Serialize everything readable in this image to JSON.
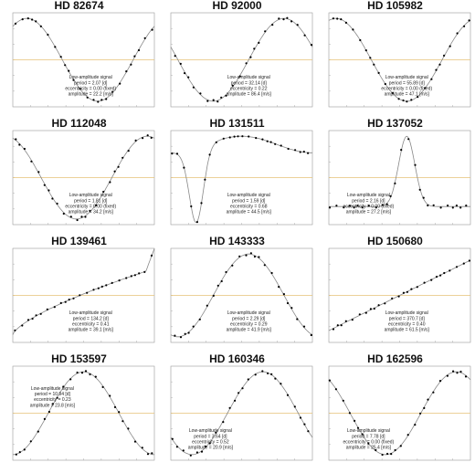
{
  "chart_data": [
    {
      "type": "line",
      "title": "HD 82674",
      "kind": "sin",
      "phase": 0.15,
      "period_d": 207,
      "xmax": 650,
      "orient": "br",
      "annotation": [
        "Low-amplitude signal",
        "period = 2.07 [d]",
        "eccentricity = 0.00 (fixed)",
        "amplitude = 22.2 [m/s]"
      ]
    },
    {
      "type": "line",
      "title": "HD 92000",
      "kind": "sin",
      "phase": 0.45,
      "period_d": 321,
      "xmax": 1400,
      "orient": "br",
      "annotation": [
        "Low-amplitude signal",
        "period = 32.14 [d]",
        "eccentricity = 0.22",
        "amplitude = 86.4 [m/s]"
      ]
    },
    {
      "type": "line",
      "title": "HD 105982",
      "kind": "sin",
      "phase": 0.2,
      "period_d": 559,
      "xmax": 1100,
      "orient": "br",
      "annotation": [
        "Low-amplitude signal",
        "period = 55.89 [d]",
        "eccentricity = 0.00 (fixed)",
        "amplitude = 47.1 [m/s]"
      ]
    },
    {
      "type": "line",
      "title": "HD 112048",
      "kind": "sin",
      "phase": 0.3,
      "period_d": 181,
      "xmax": 800,
      "orient": "br",
      "annotation": [
        "Low-amplitude signal",
        "period = 1.81 [d]",
        "eccentricity = 0.00 (fixed)",
        "amplitude = 34.2 [m/s]"
      ]
    },
    {
      "type": "line",
      "title": "HD 131511",
      "kind": "dip",
      "phase": 0.1,
      "period_d": 159,
      "xmax": 125,
      "orient": "br",
      "annotation": [
        "Low-amplitude signal",
        "period = 1.59 [d]",
        "eccentricity = 0.68",
        "amplitude = 44.5 [m/s]"
      ]
    },
    {
      "type": "line",
      "title": "HD 137052",
      "kind": "peak",
      "phase": 0.55,
      "period_d": 216,
      "xmax": 225,
      "orient": "bl",
      "annotation": [
        "Low-amplitude signal",
        "period = 2.16 [d]",
        "eccentricity = 0.00 (fixed)",
        "amplitude = 27.2 [m/s]"
      ]
    },
    {
      "type": "line",
      "title": "HD 139461",
      "kind": "rise",
      "phase": 0.0,
      "period_d": 1342,
      "xmax": 400,
      "orient": "br",
      "annotation": [
        "Low-amplitude signal",
        "period = 134.2 [d]",
        "eccentricity = 0.41",
        "amplitude = 39.1 [m/s]"
      ]
    },
    {
      "type": "line",
      "title": "HD 143333",
      "kind": "sin",
      "phase": 0.7,
      "period_d": 229,
      "xmax": 600,
      "orient": "br",
      "annotation": [
        "Low-amplitude signal",
        "period = 2.29 [d]",
        "eccentricity = 0.29",
        "amplitude = 41.9 [m/s]"
      ]
    },
    {
      "type": "line",
      "title": "HD 150680",
      "kind": "linear",
      "phase": 0.0,
      "period_d": 3707,
      "xmax": 1800,
      "orient": "br",
      "annotation": [
        "Low-amplitude signal",
        "period = 370.7 [d]",
        "eccentricity = 0.40",
        "amplitude = 61.5 [m/s]"
      ]
    },
    {
      "type": "line",
      "title": "HD 153597",
      "kind": "sin",
      "phase": 0.75,
      "period_d": 1094,
      "xmax": 55,
      "orient": "tl",
      "annotation": [
        "Low-amplitude signal",
        "period = 10.94 [d]",
        "eccentricity = 0.23",
        "amplitude = 23.8 [m/s]"
      ]
    },
    {
      "type": "line",
      "title": "HD 160346",
      "kind": "sin",
      "phase": 0.6,
      "period_d": 364,
      "xmax": 90,
      "orient": "bl",
      "annotation": [
        "Low-amplitude signal",
        "period = 3.64 [d]",
        "eccentricity = 0.52",
        "amplitude = 20.9 [m/s]"
      ]
    },
    {
      "type": "line",
      "title": "HD 162596",
      "kind": "sin",
      "phase": 0.35,
      "period_d": 778,
      "xmax": 800,
      "orient": "bl",
      "annotation": [
        "Low-amplitude signal",
        "period = 7.78 [d]",
        "eccentricity = 0.00 (fixed)",
        "amplitude = 25.4 [m/s]"
      ]
    }
  ],
  "style": {
    "curve_color": "#888888",
    "point_color": "#000000",
    "zero_line_color": "#e6c277",
    "frame_color": "#999999"
  }
}
